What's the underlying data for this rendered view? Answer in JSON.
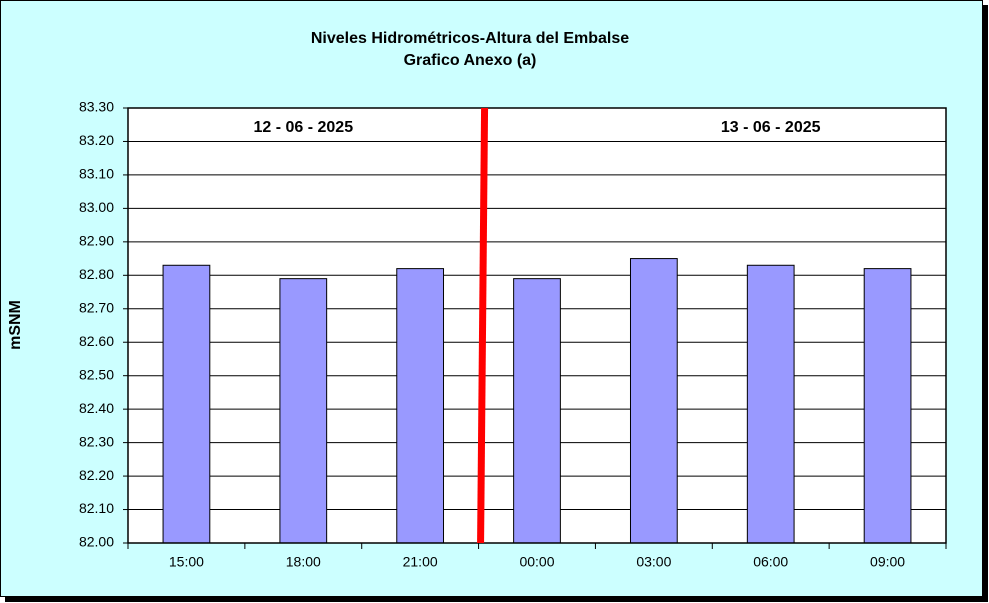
{
  "chart_data": {
    "type": "bar",
    "title": "Niveles Hidrométricos-Altura del Embalse",
    "subtitle": "Grafico Anexo (a)",
    "y_label": "mSNM",
    "categories": [
      "15:00",
      "18:00",
      "21:00",
      "00:00",
      "03:00",
      "06:00",
      "09:00"
    ],
    "values": [
      82.83,
      82.79,
      82.82,
      82.79,
      82.85,
      82.83,
      82.82
    ],
    "color": "#9999ff",
    "ylim": [
      82.0,
      83.3
    ],
    "yticks": [
      {
        "value": 82.0,
        "label": "82.00"
      },
      {
        "value": 82.1,
        "label": "82.10"
      },
      {
        "value": 82.2,
        "label": "82.20"
      },
      {
        "value": 82.3,
        "label": "82.30"
      },
      {
        "value": 82.4,
        "label": "82.40"
      },
      {
        "value": 82.5,
        "label": "82.50"
      },
      {
        "value": 82.6,
        "label": "82.60"
      },
      {
        "value": 82.7,
        "label": "82.70"
      },
      {
        "value": 82.8,
        "label": "82.80"
      },
      {
        "value": 82.9,
        "label": "82.90"
      },
      {
        "value": 83.0,
        "label": "83.00"
      },
      {
        "value": 83.1,
        "label": "83.10"
      },
      {
        "value": 83.2,
        "label": "83.20"
      },
      {
        "value": 83.3,
        "label": "83.30"
      }
    ],
    "grid": true,
    "annotations": [
      "12 - 06 - 2025",
      "13 - 06 - 2025"
    ]
  }
}
